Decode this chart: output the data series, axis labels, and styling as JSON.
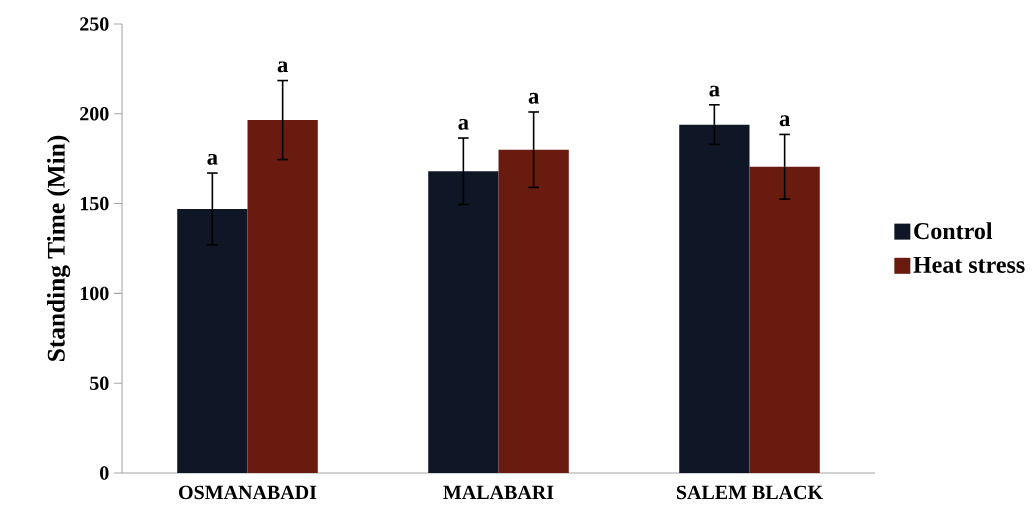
{
  "chart_data": {
    "type": "bar",
    "ylabel": "Standing Time (Min)",
    "categories": [
      "OSMANABADI",
      "MALABARI",
      "SALEM BLACK"
    ],
    "series": [
      {
        "name": "Control",
        "color": "#0f1726",
        "values": [
          147,
          168,
          194
        ],
        "errors": [
          20,
          18.5,
          11
        ]
      },
      {
        "name": "Heat stress",
        "color": "#6a1b10",
        "values": [
          196.5,
          180,
          170.5
        ],
        "errors": [
          22,
          21,
          18
        ]
      }
    ],
    "ylim": [
      0,
      250
    ],
    "yticks": [
      0,
      50,
      100,
      150,
      200,
      250
    ],
    "grid": false,
    "legend": "right",
    "annotations": [
      "a",
      "a",
      "a",
      "a",
      "a",
      "a"
    ]
  }
}
